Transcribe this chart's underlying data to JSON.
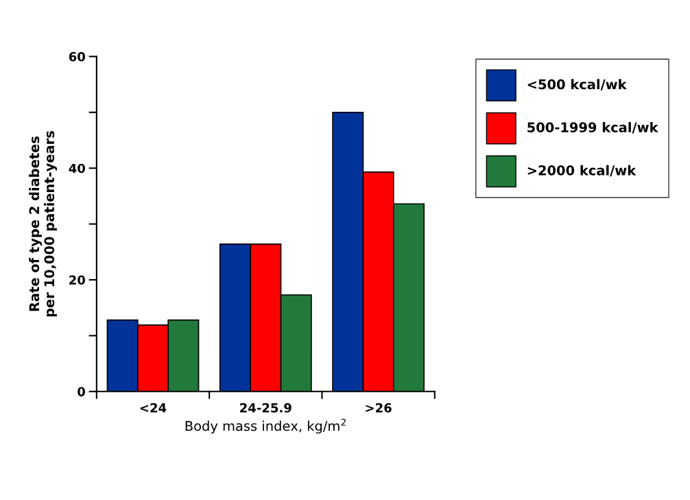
{
  "chart_data": {
    "type": "bar",
    "xlabel": "Body mass index, kg/m$^{2}$",
    "ylabel": "Rate of type 2 diabetes\nper 10,000 patient-years",
    "categories": [
      "<24",
      "24-25.9",
      ">26"
    ],
    "series": [
      {
        "name": "<500 kcal/wk",
        "color": "#003399",
        "values": [
          12.8,
          26.4,
          50
        ]
      },
      {
        "name": "500-1999 kcal/wk",
        "color": "#ff0000",
        "values": [
          11.9,
          26.4,
          39.3
        ]
      },
      {
        "name": ">2000 kcal/wk",
        "color": "#217a3c",
        "values": [
          12.8,
          17.3,
          33.6
        ]
      }
    ],
    "ylim": [
      0,
      60
    ],
    "yticks": [
      0,
      {
        "value": 10,
        "label": null
      },
      20,
      {
        "value": 30,
        "label": null
      },
      40,
      {
        "value": 50,
        "label": null
      },
      60
    ],
    "grid": false,
    "legend": "right"
  }
}
